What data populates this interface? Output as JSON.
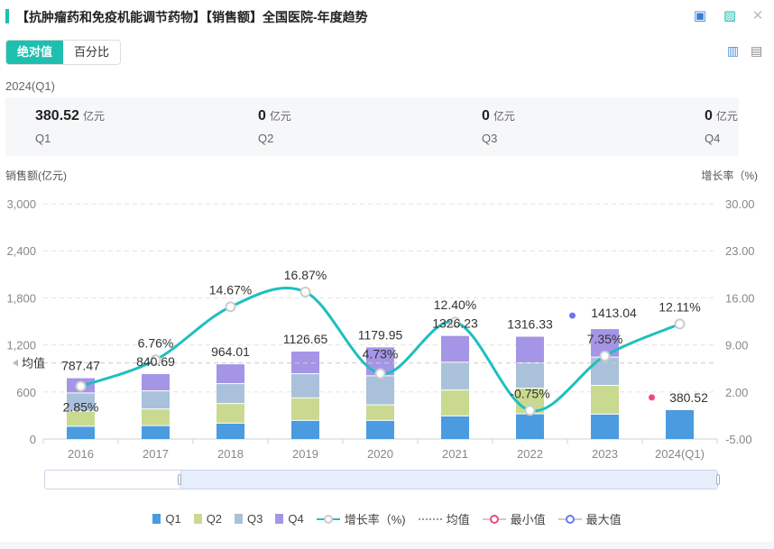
{
  "header": {
    "title": "【抗肿瘤药和免疫机能调节药物】【销售额】全国医院-年度趋势",
    "icons": [
      "excel-export-icon",
      "image-export-icon",
      "close-icon"
    ]
  },
  "tabs": [
    {
      "label": "绝对值",
      "active": true
    },
    {
      "label": "百分比",
      "active": false
    }
  ],
  "view_icons": [
    "bar-chart-icon",
    "table-icon"
  ],
  "summary": {
    "period": "2024(Q1)",
    "unit": "亿元",
    "items": [
      {
        "value": "380.52",
        "label": "Q1"
      },
      {
        "value": "0",
        "label": "Q2"
      },
      {
        "value": "0",
        "label": "Q3"
      },
      {
        "value": "0",
        "label": "Q4"
      }
    ]
  },
  "colors": {
    "Q1": "#4a9be0",
    "Q2": "#c9da90",
    "Q3": "#a9c1da",
    "Q4": "#a595e6",
    "line": "#1fbfbf",
    "min": "#f0468a",
    "max": "#6a78f0",
    "accent": "#1fbfb0"
  },
  "chart_data": {
    "type": "bar+line",
    "ylabel": "销售额(亿元)",
    "y2label": "增长率（%)",
    "categories": [
      "2016",
      "2017",
      "2018",
      "2019",
      "2020",
      "2021",
      "2022",
      "2023",
      "2024(Q1)"
    ],
    "ylim": [
      0,
      3000
    ],
    "yticks": [
      "0",
      "600",
      "1,200",
      "1,800",
      "2,400",
      "3,000"
    ],
    "y2lim": [
      -5,
      30
    ],
    "y2ticks": [
      "-5.00",
      "2.00",
      "9.00",
      "16.00",
      "23.00",
      "30.00"
    ],
    "stacked_series": [
      {
        "name": "Q1",
        "values": [
          168,
          177,
          208,
          243,
          243,
          300,
          327,
          323,
          380.52
        ]
      },
      {
        "name": "Q2",
        "values": [
          192,
          212,
          250,
          288,
          199,
          331,
          327,
          366,
          0
        ]
      },
      {
        "name": "Q3",
        "values": [
          233,
          231,
          254,
          307,
          370,
          354,
          323,
          361,
          0
        ]
      },
      {
        "name": "Q4",
        "values": [
          194,
          220,
          252,
          289,
          368,
          341,
          339,
          363,
          0
        ]
      }
    ],
    "totals": [
      "787.47",
      "840.69",
      "964.01",
      "1126.65",
      "1179.95",
      "1326.23",
      "1316.33",
      "1413.04",
      "380.52"
    ],
    "line_series": {
      "name": "增长率（%)",
      "values": [
        2.85,
        6.76,
        14.67,
        16.87,
        4.73,
        12.4,
        -0.75,
        7.35,
        12.11
      ],
      "labels": [
        "2.85%",
        "6.76%",
        "14.67%",
        "16.87%",
        "4.73%",
        "12.40%",
        "-0.75%",
        "7.35%",
        "12.11%"
      ]
    },
    "average": {
      "label": "均值",
      "value": 970
    },
    "max_index": 7,
    "min_index": 8,
    "grid": true,
    "legend": {
      "position": "bottom",
      "items": [
        "Q1",
        "Q2",
        "Q3",
        "Q4",
        "增长率（%)",
        "均值",
        "最小值",
        "最大值"
      ]
    }
  }
}
